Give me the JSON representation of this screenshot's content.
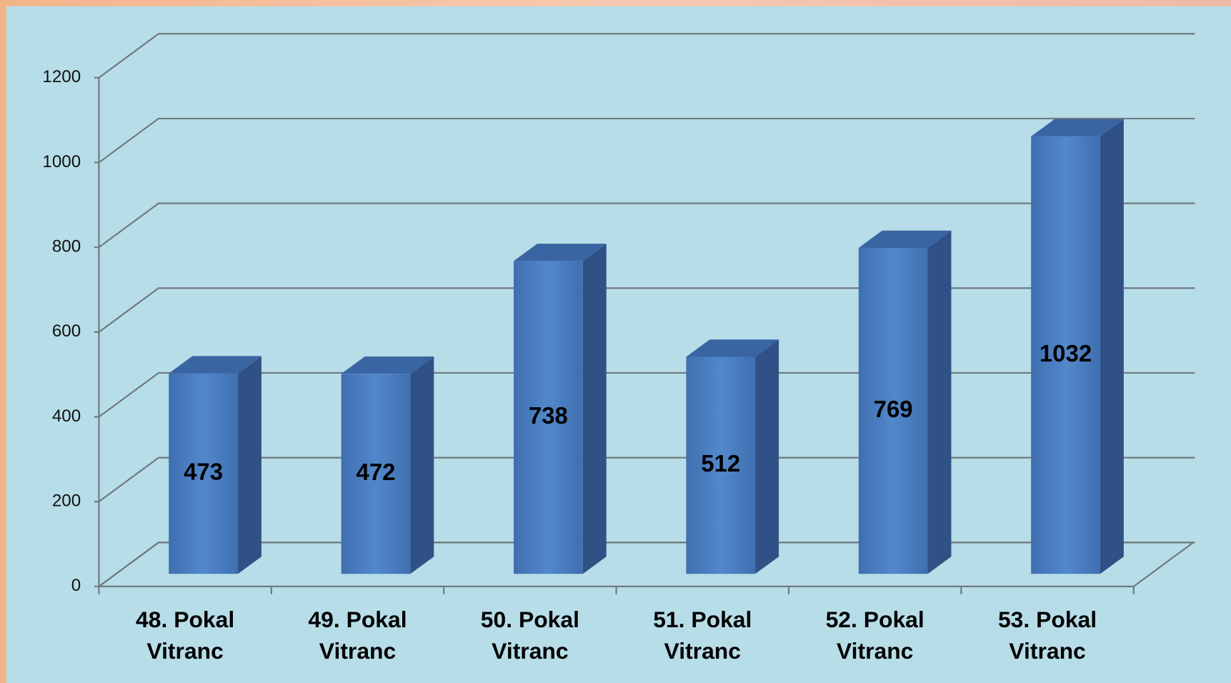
{
  "chart_data": {
    "type": "bar3d",
    "categories": [
      "48. Pokal Vitranc",
      "49. Pokal Vitranc",
      "50. Pokal Vitranc",
      "51. Pokal Vitranc",
      "52. Pokal Vitranc",
      "53. Pokal Vitranc"
    ],
    "values": [
      473,
      472,
      738,
      512,
      769,
      1032
    ],
    "color": "#4a7ebf",
    "ylim": [
      0,
      1200
    ],
    "yticks": [
      0,
      200,
      400,
      600,
      800,
      1000,
      1200
    ],
    "grid": true
  }
}
